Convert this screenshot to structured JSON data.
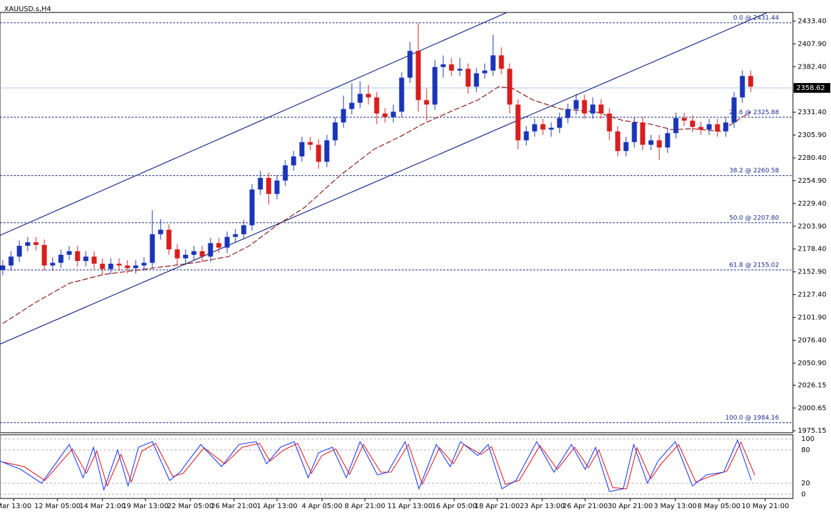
{
  "chart_data": {
    "type": "candlestick",
    "title": "XAUUSD.s,H4",
    "xlim": [
      -0.33,
      95.08
    ],
    "xticks": [
      {
        "value": 1.33,
        "label": "Mar 13:00"
      },
      {
        "value": 6.58,
        "label": "12 Mar 05:00"
      },
      {
        "value": 12,
        "label": "14 Mar 21:00"
      },
      {
        "value": 17.17,
        "label": "19 Mar 13:00"
      },
      {
        "value": 22.58,
        "label": "22 Mar 05:00"
      },
      {
        "value": 27.83,
        "label": "26 Mar 21:00"
      },
      {
        "value": 33,
        "label": "1 Apr 13:00"
      },
      {
        "value": 38.42,
        "label": "4 Apr 05:00"
      },
      {
        "value": 43.58,
        "label": "8 Apr 21:00"
      },
      {
        "value": 49,
        "label": "11 Apr 13:00"
      },
      {
        "value": 54.33,
        "label": "16 Apr 05:00"
      },
      {
        "value": 59.5,
        "label": "18 Apr 21:00"
      },
      {
        "value": 64.92,
        "label": "23 Apr 13:00"
      },
      {
        "value": 70.08,
        "label": "26 Apr 21:00"
      },
      {
        "value": 75.5,
        "label": "30 Apr 21:00"
      },
      {
        "value": 80.92,
        "label": "3 May 13:00"
      },
      {
        "value": 86.17,
        "label": "8 May 05:00"
      },
      {
        "value": 91.75,
        "label": "10 May 21:00"
      }
    ],
    "ylim": [
      1973,
      2443
    ],
    "yticks": [
      {
        "value": 2433.4,
        "label": "2433.40"
      },
      {
        "value": 2407.9,
        "label": "2407.90"
      },
      {
        "value": 2382.4,
        "label": "2382.40"
      },
      {
        "value": 2331.4,
        "label": "2331.40"
      },
      {
        "value": 2305.9,
        "label": "2305.90"
      },
      {
        "value": 2280.4,
        "label": "2280.40"
      },
      {
        "value": 2254.9,
        "label": "2254.90"
      },
      {
        "value": 2229.4,
        "label": "2229.40"
      },
      {
        "value": 2203.9,
        "label": "2203.90"
      },
      {
        "value": 2178.4,
        "label": "2178.40"
      },
      {
        "value": 2152.9,
        "label": "2152.90"
      },
      {
        "value": 2127.4,
        "label": "2127.40"
      },
      {
        "value": 2101.9,
        "label": "2101.90"
      },
      {
        "value": 2076.4,
        "label": "2076.40"
      },
      {
        "value": 2050.9,
        "label": "2050.90"
      },
      2026.15,
      2000.65,
      1975.15
    ],
    "up_color": "#1a35b8",
    "down_color": "#d81e1e",
    "candles": {
      "open": [
        2155,
        2160,
        2170,
        2182,
        2186,
        2183,
        2160,
        2163,
        2172,
        2176,
        2165,
        2170,
        2162,
        2156,
        2162,
        2160,
        2157,
        2160,
        2163,
        2195,
        2200,
        2178,
        2168,
        2172,
        2176,
        2170,
        2185,
        2180,
        2192,
        2195,
        2205,
        2245,
        2258,
        2240,
        2255,
        2272,
        2282,
        2298,
        2295,
        2276,
        2300,
        2320,
        2335,
        2342,
        2352,
        2348,
        2330,
        2326,
        2332,
        2370,
        2400,
        2345,
        2340,
        2382,
        2385,
        2378,
        2380,
        2360,
        2375,
        2378,
        2395,
        2380,
        2340,
        2300,
        2310,
        2318,
        2312,
        2314,
        2325,
        2335,
        2345,
        2330,
        2340,
        2330,
        2310,
        2288,
        2298,
        2320,
        2295,
        2300,
        2292,
        2308,
        2325,
        2322,
        2315,
        2312,
        2318,
        2310,
        2320,
        2348,
        2372
      ],
      "high": [
        2166,
        2176,
        2188,
        2192,
        2192,
        2189,
        2169,
        2178,
        2182,
        2182,
        2176,
        2176,
        2168,
        2168,
        2168,
        2166,
        2166,
        2169,
        2222,
        2212,
        2206,
        2184,
        2178,
        2182,
        2182,
        2191,
        2191,
        2198,
        2201,
        2211,
        2251,
        2266,
        2264,
        2261,
        2278,
        2288,
        2304,
        2304,
        2301,
        2306,
        2326,
        2350,
        2364,
        2366,
        2362,
        2354,
        2336,
        2340,
        2376,
        2410,
        2431,
        2358,
        2390,
        2395,
        2392,
        2392,
        2386,
        2381,
        2386,
        2418,
        2404,
        2386,
        2346,
        2316,
        2324,
        2324,
        2320,
        2331,
        2341,
        2352,
        2351,
        2348,
        2346,
        2336,
        2316,
        2304,
        2326,
        2326,
        2306,
        2306,
        2314,
        2331,
        2331,
        2328,
        2321,
        2324,
        2324,
        2326,
        2354,
        2378,
        2378
      ],
      "low": [
        2149,
        2154,
        2164,
        2176,
        2177,
        2154,
        2154,
        2157,
        2166,
        2159,
        2159,
        2156,
        2150,
        2150,
        2154,
        2151,
        2151,
        2154,
        2157,
        2189,
        2172,
        2160,
        2160,
        2166,
        2164,
        2164,
        2174,
        2174,
        2186,
        2189,
        2199,
        2239,
        2228,
        2234,
        2249,
        2266,
        2276,
        2289,
        2268,
        2270,
        2294,
        2314,
        2329,
        2336,
        2340,
        2318,
        2320,
        2320,
        2326,
        2364,
        2332,
        2322,
        2334,
        2370,
        2372,
        2372,
        2352,
        2354,
        2369,
        2372,
        2374,
        2330,
        2290,
        2294,
        2304,
        2306,
        2304,
        2308,
        2319,
        2329,
        2324,
        2324,
        2324,
        2300,
        2282,
        2282,
        2292,
        2289,
        2289,
        2278,
        2286,
        2302,
        2316,
        2309,
        2306,
        2306,
        2304,
        2304,
        2314,
        2342,
        2354
      ],
      "close": [
        2160,
        2170,
        2182,
        2186,
        2183,
        2160,
        2163,
        2172,
        2176,
        2165,
        2170,
        2162,
        2156,
        2162,
        2160,
        2157,
        2160,
        2163,
        2195,
        2200,
        2178,
        2168,
        2172,
        2176,
        2170,
        2185,
        2180,
        2192,
        2195,
        2205,
        2245,
        2258,
        2240,
        2255,
        2272,
        2282,
        2298,
        2295,
        2276,
        2300,
        2320,
        2335,
        2342,
        2352,
        2348,
        2330,
        2326,
        2332,
        2370,
        2400,
        2345,
        2340,
        2382,
        2385,
        2378,
        2380,
        2360,
        2375,
        2378,
        2395,
        2380,
        2340,
        2300,
        2310,
        2318,
        2312,
        2314,
        2325,
        2335,
        2345,
        2330,
        2340,
        2330,
        2310,
        2288,
        2298,
        2320,
        2295,
        2300,
        2292,
        2308,
        2325,
        2322,
        2315,
        2312,
        2318,
        2310,
        2320,
        2348,
        2372,
        2360
      ]
    },
    "moving_average": {
      "color": "#8b1a1a",
      "x": [
        0,
        3.83,
        8,
        12.17,
        18,
        23,
        27.17,
        29.67,
        33,
        36.33,
        40.5,
        44.67,
        48,
        50.5,
        53.83,
        57.17,
        59.67,
        61.33,
        63.83,
        67.17,
        71.33,
        74.67,
        78,
        80.5,
        83,
        86.33,
        90
      ],
      "values": [
        2095,
        2118,
        2140,
        2150,
        2157,
        2163,
        2170,
        2182,
        2205,
        2225,
        2260,
        2290,
        2305,
        2318,
        2332,
        2345,
        2360,
        2358,
        2345,
        2335,
        2332,
        2322,
        2318,
        2312,
        2313,
        2310,
        2332
      ]
    },
    "trendlines": [
      {
        "color": "#1a2a8a",
        "x": [
          -0.33,
          63.7
        ],
        "values": [
          2193.7,
          2455.4
        ]
      },
      {
        "color": "#1a2a8a",
        "x": [
          -0.33,
          95.1
        ],
        "values": [
          2072.1,
          2455.4
        ]
      }
    ],
    "fib_color": "#1a2a8a",
    "fib_levels": [
      {
        "value": 2431.44,
        "label": "0.0 @ 2431.44"
      },
      {
        "value": 2325.88,
        "label": "23.6 @ 2325.88"
      },
      {
        "value": 2260.58,
        "label": "38.2 @ 2260.58"
      },
      {
        "value": 2207.8,
        "label": "50.0 @ 2207.80"
      },
      {
        "value": 2155.02,
        "label": "61.8 @ 2155.02"
      },
      {
        "value": 1984.16,
        "label": "100.0 @ 1984.16"
      }
    ],
    "current_price": 2358.62,
    "current_price_color": "#a8c8f0",
    "stochastic": {
      "ylim": [
        -7.5,
        107.5
      ],
      "yticks": [
        100,
        80,
        20,
        0
      ],
      "main": {
        "color": "#1e3cff",
        "x": [
          -0.33,
          2.17,
          4.67,
          8,
          9.67,
          10.92,
          12.17,
          13.83,
          15.08,
          16.33,
          18,
          20.08,
          21.33,
          23.83,
          26.33,
          28.42,
          30.5,
          31.75,
          33.42,
          35.08,
          36.75,
          38,
          39.67,
          41.33,
          43,
          45.08,
          46.33,
          48.42,
          50.08,
          52.17,
          53.83,
          55.08,
          57.17,
          58.42,
          60.08,
          61.75,
          64.25,
          66.33,
          68.42,
          70.08,
          71.33,
          73,
          74.67,
          75.92,
          77.58,
          78.83,
          80.92,
          83,
          84.67,
          86.75,
          88.42,
          90.08
        ],
        "values": [
          60,
          45,
          20,
          90,
          30,
          85,
          8,
          80,
          15,
          85,
          95,
          25,
          40,
          90,
          50,
          90,
          95,
          55,
          85,
          95,
          30,
          75,
          85,
          30,
          95,
          35,
          40,
          95,
          10,
          90,
          50,
          95,
          70,
          90,
          10,
          25,
          95,
          40,
          90,
          45,
          85,
          5,
          10,
          90,
          20,
          60,
          95,
          15,
          35,
          40,
          98,
          25
        ]
      },
      "signal": {
        "color": "#e02020",
        "x": [
          0.07,
          2.57,
          5.07,
          8.4,
          10.07,
          11.32,
          12.57,
          14.23,
          15.48,
          16.73,
          18.4,
          20.48,
          21.73,
          24.23,
          26.73,
          28.82,
          30.9,
          32.15,
          33.82,
          35.48,
          37.15,
          38.4,
          40.07,
          41.73,
          43.4,
          45.48,
          46.73,
          48.82,
          50.48,
          52.57,
          54.23,
          55.48,
          57.57,
          58.82,
          60.48,
          62.15,
          64.65,
          66.73,
          68.82,
          70.48,
          71.73,
          73.4,
          75.07,
          76.32,
          77.98,
          79.23,
          81.32,
          83.4,
          85.07,
          87.15,
          88.82,
          90.48
        ],
        "values": [
          58,
          50,
          25,
          82,
          38,
          78,
          15,
          72,
          22,
          78,
          92,
          32,
          38,
          84,
          55,
          85,
          92,
          60,
          80,
          92,
          38,
          70,
          82,
          36,
          90,
          40,
          40,
          90,
          18,
          84,
          55,
          90,
          72,
          86,
          18,
          25,
          88,
          45,
          85,
          48,
          80,
          12,
          10,
          84,
          28,
          55,
          90,
          22,
          32,
          42,
          94,
          35
        ]
      }
    }
  }
}
